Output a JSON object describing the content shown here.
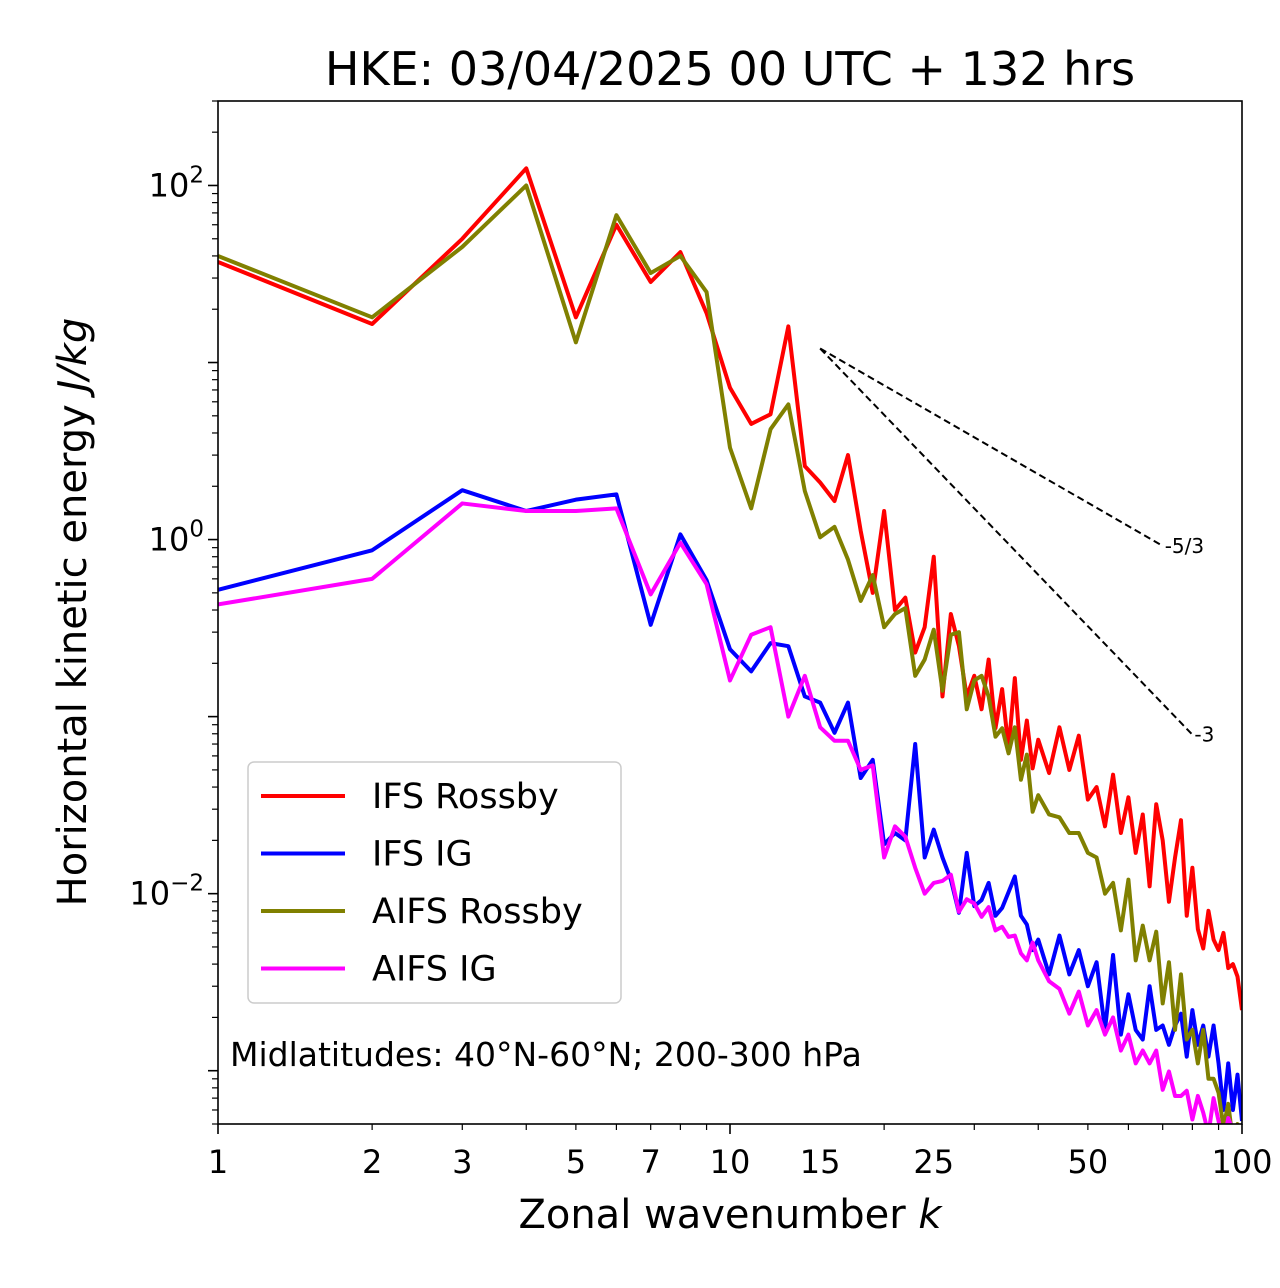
{
  "chart_data": {
    "type": "line",
    "title": "HKE: 03/04/2025 00 UTC + 132 hrs",
    "xlabel": "Zonal wavenumber",
    "xlabel_var": "k",
    "ylabel": "Horizontal kinetic energy",
    "ylabel_var": "J/kg",
    "xscale": "log",
    "yscale": "log",
    "xlim": [
      1,
      100
    ],
    "ylim": [
      0.0005,
      300
    ],
    "x_ticks": [
      {
        "value": 1,
        "label": "1"
      },
      {
        "value": 2,
        "label": "2"
      },
      {
        "value": 3,
        "label": "3"
      },
      {
        "value": 5,
        "label": "5"
      },
      {
        "value": 7,
        "label": "7"
      },
      {
        "value": 10,
        "label": "10"
      },
      {
        "value": 15,
        "label": "15"
      },
      {
        "value": 25,
        "label": "25"
      },
      {
        "value": 50,
        "label": "50"
      },
      {
        "value": 100,
        "label": "100"
      }
    ],
    "y_ticks": [
      {
        "value": 100,
        "base": "10",
        "exp": "2"
      },
      {
        "value": 1,
        "base": "10",
        "exp": "0"
      },
      {
        "value": 0.01,
        "base": "10",
        "exp": "−2"
      }
    ],
    "grid": false,
    "legend_position": "lower-left",
    "annotation": "Midlatitudes: 40°N-60°N; 200-300 hPa",
    "reference_slopes": [
      {
        "label": "-5/3",
        "slope": -1.6667,
        "x_start": 15,
        "y_start": 12,
        "x_end": 70
      },
      {
        "label": "-3",
        "slope": -3,
        "x_start": 15,
        "y_start": 12,
        "x_end": 80
      }
    ],
    "series": [
      {
        "name": "IFS Rossby",
        "color": "#ff0000",
        "x": [
          1,
          2,
          3,
          4,
          5,
          6,
          7,
          8,
          9,
          10,
          11,
          12,
          13,
          14,
          15,
          16,
          17,
          18,
          19,
          20,
          21,
          22,
          23,
          24,
          25,
          26,
          27,
          28,
          29,
          30,
          31,
          32,
          33,
          34,
          35,
          36,
          37,
          38,
          39,
          40,
          42,
          44,
          46,
          48,
          50,
          52,
          54,
          56,
          58,
          60,
          62,
          64,
          66,
          68,
          70,
          72,
          74,
          76,
          78,
          80,
          82,
          84,
          86,
          88,
          90,
          92,
          94,
          96,
          98,
          100
        ],
        "y": [
          37,
          16.5,
          50,
          125,
          18,
          60,
          28.5,
          42,
          19,
          7.2,
          4.5,
          5.1,
          16,
          2.6,
          2.1,
          1.65,
          3,
          1.12,
          0.5,
          1.45,
          0.4,
          0.47,
          0.23,
          0.32,
          0.8,
          0.13,
          0.38,
          0.25,
          0.13,
          0.17,
          0.11,
          0.21,
          0.086,
          0.143,
          0.066,
          0.165,
          0.057,
          0.095,
          0.051,
          0.074,
          0.048,
          0.087,
          0.05,
          0.078,
          0.034,
          0.04,
          0.024,
          0.047,
          0.022,
          0.035,
          0.017,
          0.028,
          0.011,
          0.032,
          0.02,
          0.009,
          0.016,
          0.026,
          0.0075,
          0.014,
          0.0063,
          0.0049,
          0.008,
          0.0055,
          0.0048,
          0.006,
          0.0038,
          0.004,
          0.0034,
          0.0022
        ]
      },
      {
        "name": "IFS IG",
        "color": "#0000ff",
        "x": [
          1,
          2,
          3,
          4,
          5,
          6,
          7,
          8,
          9,
          10,
          11,
          12,
          13,
          14,
          15,
          16,
          17,
          18,
          19,
          20,
          21,
          22,
          23,
          24,
          25,
          26,
          27,
          28,
          29,
          30,
          31,
          32,
          33,
          34,
          35,
          36,
          37,
          38,
          39,
          40,
          42,
          44,
          46,
          48,
          50,
          52,
          54,
          56,
          58,
          60,
          62,
          64,
          66,
          68,
          70,
          72,
          74,
          76,
          78,
          80,
          82,
          84,
          86,
          88,
          90,
          92,
          94,
          96,
          98,
          100
        ],
        "y": [
          0.52,
          0.87,
          1.9,
          1.45,
          1.68,
          1.8,
          0.33,
          1.07,
          0.59,
          0.24,
          0.18,
          0.26,
          0.25,
          0.13,
          0.12,
          0.081,
          0.12,
          0.045,
          0.057,
          0.019,
          0.022,
          0.02,
          0.07,
          0.016,
          0.023,
          0.016,
          0.012,
          0.0078,
          0.017,
          0.0085,
          0.0092,
          0.0115,
          0.0075,
          0.0083,
          0.0102,
          0.0125,
          0.0075,
          0.0067,
          0.0048,
          0.0055,
          0.0035,
          0.0058,
          0.0035,
          0.0048,
          0.003,
          0.0041,
          0.0017,
          0.0045,
          0.0016,
          0.0027,
          0.0017,
          0.0015,
          0.003,
          0.0017,
          0.0018,
          0.0014,
          0.0018,
          0.0021,
          0.0012,
          0.0022,
          0.0014,
          0.0018,
          0.0012,
          0.0018,
          0.0011,
          0.0006,
          0.0011,
          0.0006,
          0.00095,
          0.00052
        ]
      },
      {
        "name": "AIFS Rossby",
        "color": "#808000",
        "x": [
          1,
          2,
          3,
          4,
          5,
          6,
          7,
          8,
          9,
          10,
          11,
          12,
          13,
          14,
          15,
          16,
          17,
          18,
          19,
          20,
          21,
          22,
          23,
          24,
          25,
          26,
          27,
          28,
          29,
          30,
          31,
          32,
          33,
          34,
          35,
          36,
          37,
          38,
          39,
          40,
          42,
          44,
          46,
          48,
          50,
          52,
          54,
          56,
          58,
          60,
          62,
          64,
          66,
          68,
          70,
          72,
          74,
          76,
          78,
          80,
          82,
          84,
          86,
          88,
          90,
          92,
          94,
          96,
          98,
          100
        ],
        "y": [
          40,
          18,
          45,
          100,
          13,
          68,
          32,
          40,
          25,
          3.3,
          1.5,
          4.2,
          5.8,
          1.88,
          1.03,
          1.18,
          0.77,
          0.45,
          0.63,
          0.32,
          0.38,
          0.41,
          0.17,
          0.21,
          0.31,
          0.14,
          0.29,
          0.3,
          0.11,
          0.16,
          0.17,
          0.13,
          0.077,
          0.086,
          0.062,
          0.087,
          0.044,
          0.061,
          0.029,
          0.036,
          0.028,
          0.027,
          0.022,
          0.022,
          0.017,
          0.016,
          0.01,
          0.0115,
          0.0062,
          0.012,
          0.0042,
          0.0066,
          0.0042,
          0.0061,
          0.0024,
          0.0041,
          0.0017,
          0.0035,
          0.0015,
          0.0017,
          0.0011,
          0.0017,
          0.0009,
          0.0009,
          0.00075,
          0.00048,
          0.00065,
          0.0004,
          0.0005,
          0.0003
        ]
      },
      {
        "name": "AIFS IG",
        "color": "#ff00ff",
        "x": [
          1,
          2,
          3,
          4,
          5,
          6,
          7,
          8,
          9,
          10,
          11,
          12,
          13,
          14,
          15,
          16,
          17,
          18,
          19,
          20,
          21,
          22,
          23,
          24,
          25,
          26,
          27,
          28,
          29,
          30,
          31,
          32,
          33,
          34,
          35,
          36,
          37,
          38,
          39,
          40,
          42,
          44,
          46,
          48,
          50,
          52,
          54,
          56,
          58,
          60,
          62,
          64,
          66,
          68,
          70,
          72,
          74,
          76,
          78,
          80,
          82,
          84,
          86,
          88,
          90,
          92,
          94,
          96,
          98,
          100
        ],
        "y": [
          0.43,
          0.6,
          1.6,
          1.45,
          1.45,
          1.5,
          0.49,
          0.96,
          0.56,
          0.16,
          0.29,
          0.32,
          0.1,
          0.17,
          0.087,
          0.073,
          0.073,
          0.05,
          0.053,
          0.016,
          0.024,
          0.021,
          0.014,
          0.01,
          0.0115,
          0.0118,
          0.0128,
          0.0079,
          0.0093,
          0.0088,
          0.0074,
          0.0084,
          0.0062,
          0.0065,
          0.0057,
          0.0058,
          0.0046,
          0.0042,
          0.0053,
          0.0042,
          0.0032,
          0.0029,
          0.0021,
          0.0028,
          0.0018,
          0.0022,
          0.0016,
          0.002,
          0.0013,
          0.0016,
          0.0011,
          0.0013,
          0.0011,
          0.0013,
          0.00078,
          0.00099,
          0.00072,
          0.00072,
          0.00077,
          0.00053,
          0.00072,
          0.00058,
          0.00044,
          0.0007,
          0.00052,
          0.00038,
          0.00054,
          0.00046,
          0.00047,
          0.00041
        ]
      }
    ]
  }
}
